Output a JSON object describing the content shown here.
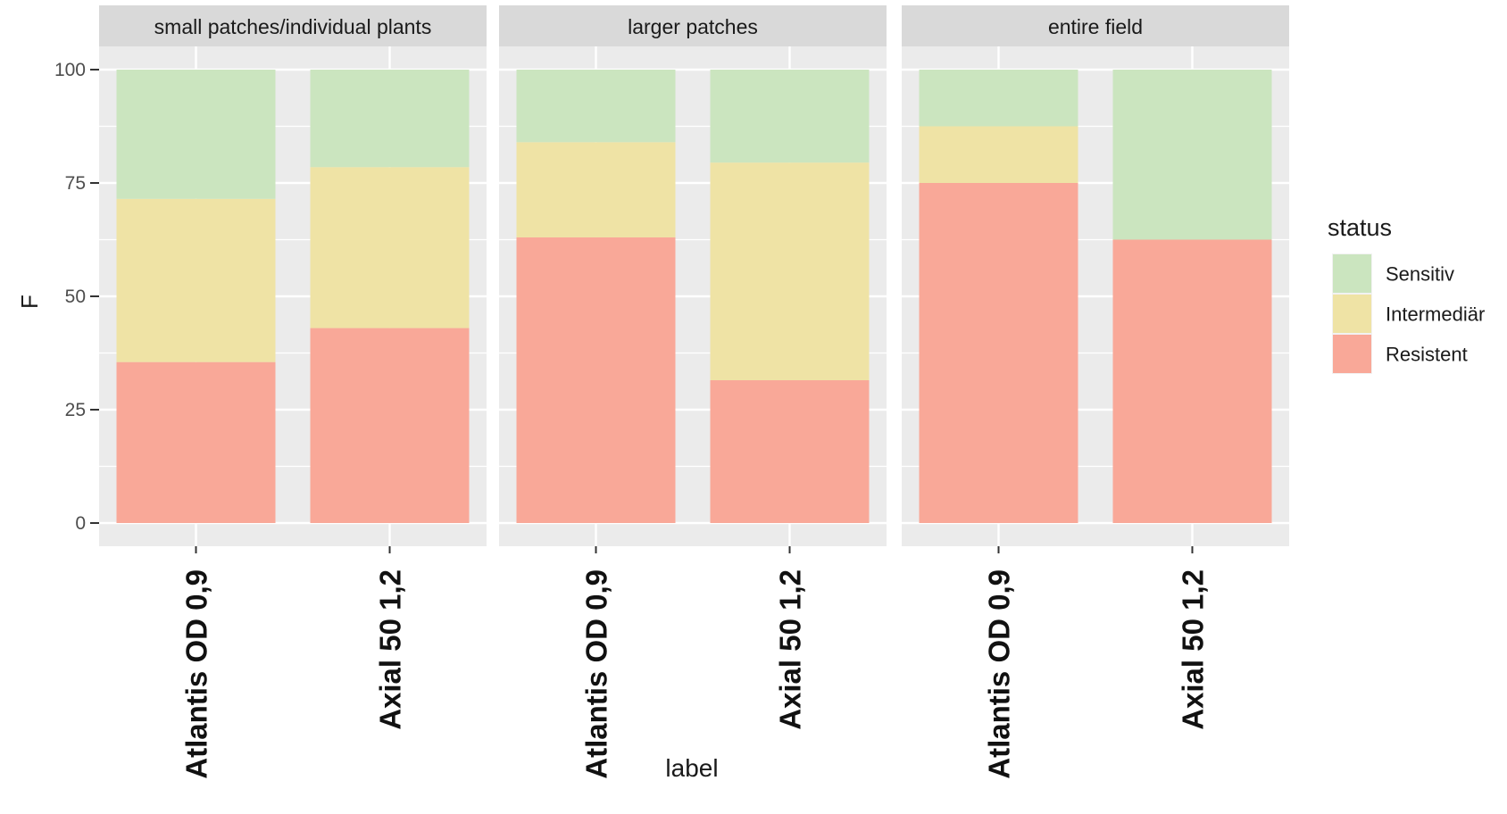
{
  "chart_data": {
    "type": "bar",
    "stacked": true,
    "facets": [
      "small patches/individual plants",
      "larger patches",
      "entire field"
    ],
    "categories": [
      "Atlantis OD 0,9",
      "Axial 50 1,2"
    ],
    "xlabel": "label",
    "ylabel": "F",
    "ylim": [
      0,
      100
    ],
    "yticks": [
      0,
      25,
      50,
      75,
      100
    ],
    "grid": true,
    "legend": {
      "title": "status",
      "position": "right"
    },
    "series": [
      {
        "name": "Resistent",
        "color": "#F9A898",
        "values": [
          [
            35.5,
            43
          ],
          [
            63,
            31.5
          ],
          [
            75,
            62.5
          ]
        ]
      },
      {
        "name": "Intermediär",
        "color": "#EFE3A5",
        "values": [
          [
            36,
            35.5
          ],
          [
            21,
            48
          ],
          [
            12.5,
            0
          ]
        ]
      },
      {
        "name": "Sensitiv",
        "color": "#CBE5BF",
        "values": [
          [
            28.5,
            21.5
          ],
          [
            16,
            20.5
          ],
          [
            12.5,
            37.5
          ]
        ]
      }
    ],
    "legend_order": [
      "Sensitiv",
      "Intermediär",
      "Resistent"
    ],
    "panel_background": "#EBEBEB",
    "strip_background": "#D9D9D9"
  }
}
